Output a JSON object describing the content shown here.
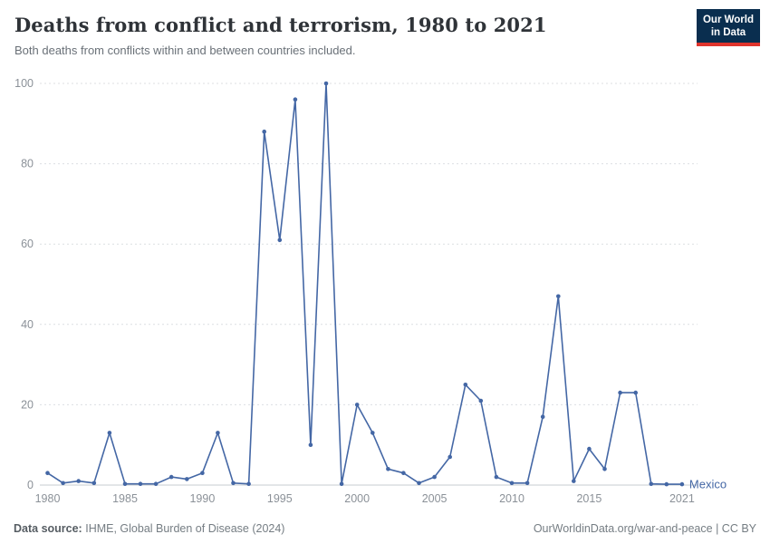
{
  "header": {
    "title": "Deaths from conflict and terrorism, 1980 to 2021",
    "subtitle": "Both deaths from conflicts within and between countries included.",
    "logo": {
      "line1": "Our World",
      "line2": "in Data",
      "bg_color": "#0a2e4f",
      "accent_color": "#e0342c"
    }
  },
  "chart_data": {
    "type": "line",
    "title": "Deaths from conflict and terrorism, 1980 to 2021",
    "x": [
      1980,
      1981,
      1982,
      1983,
      1984,
      1985,
      1986,
      1987,
      1988,
      1989,
      1990,
      1991,
      1992,
      1993,
      1994,
      1995,
      1996,
      1997,
      1998,
      1999,
      2000,
      2001,
      2002,
      2003,
      2004,
      2005,
      2006,
      2007,
      2008,
      2009,
      2010,
      2011,
      2012,
      2013,
      2014,
      2015,
      2016,
      2017,
      2018,
      2019,
      2020,
      2021
    ],
    "series": [
      {
        "name": "Mexico",
        "color": "#4467a5",
        "values": [
          3,
          0.5,
          1,
          0.5,
          13,
          0.3,
          0.3,
          0.3,
          2,
          1.5,
          3,
          13,
          0.5,
          0.3,
          88,
          61,
          96,
          10,
          100,
          0.3,
          20,
          13,
          4,
          3,
          0.5,
          2,
          7,
          25,
          21,
          2,
          0.5,
          0.5,
          17,
          47,
          1,
          9,
          4,
          23,
          23,
          0.3,
          0.2,
          0.2
        ]
      }
    ],
    "xticks": [
      1980,
      1985,
      1990,
      1995,
      2000,
      2005,
      2010,
      2015,
      2021
    ],
    "yticks": [
      0,
      20,
      40,
      60,
      80,
      100
    ],
    "xlim": [
      1979.5,
      2022
    ],
    "ylim": [
      0,
      100
    ],
    "grid": true,
    "gridline_color": "#dcdfe2",
    "axis_line_color": "#c7ccd1",
    "axis_label_color": "#8b9198",
    "legend_position": "end-of-line"
  },
  "footer": {
    "source_label": "Data source:",
    "source_text": "IHME, Global Burden of Disease (2024)",
    "link": "OurWorldinData.org/war-and-peace",
    "separator": " | ",
    "license": "CC BY"
  }
}
